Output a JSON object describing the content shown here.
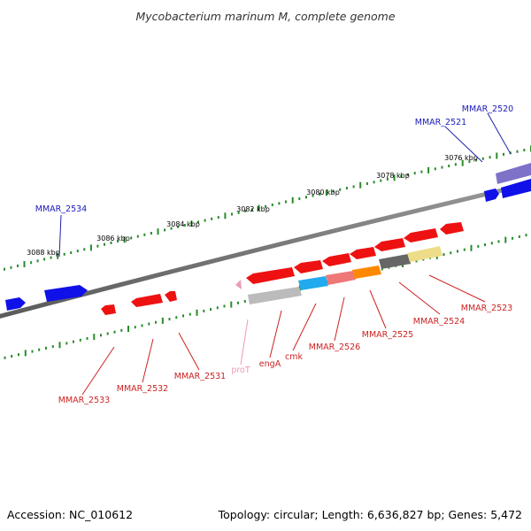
{
  "title": "Mycobacterium marinum M, complete genome",
  "accession": "Accession: NC_010612",
  "summary": "Topology: circular; Length: 6,636,827 bp; Genes: 5,472",
  "colors": {
    "forward_gene": "#1010e8",
    "reverse_gene": "#ee1111",
    "backbone": "#888888",
    "tick": "#2a8a2a",
    "forward_label": "#1a1ab8",
    "reverse_label": "#cc2222",
    "trna_label": "#ee99bb",
    "purple_gene": "#7d72c8"
  },
  "kbp_ticks": [
    "3076 kbp",
    "3078 kbp",
    "3080 kbp",
    "3082 kbp",
    "3084 kbp",
    "3086 kbp",
    "3088 kbp"
  ],
  "forward_labels": [
    "MMAR_2520",
    "MMAR_2521",
    "MMAR_2534"
  ],
  "reverse_labels": [
    "MMAR_2523",
    "MMAR_2524",
    "MMAR_2525",
    "MMAR_2526",
    "cmk",
    "engA",
    "MMAR_2531",
    "MMAR_2532",
    "MMAR_2533"
  ],
  "trna_label": "proT",
  "protein_domain_colors": [
    "#bbbbbb",
    "#22aaee",
    "#ee7777",
    "#ff8800",
    "#666666",
    "#eedd88"
  ]
}
